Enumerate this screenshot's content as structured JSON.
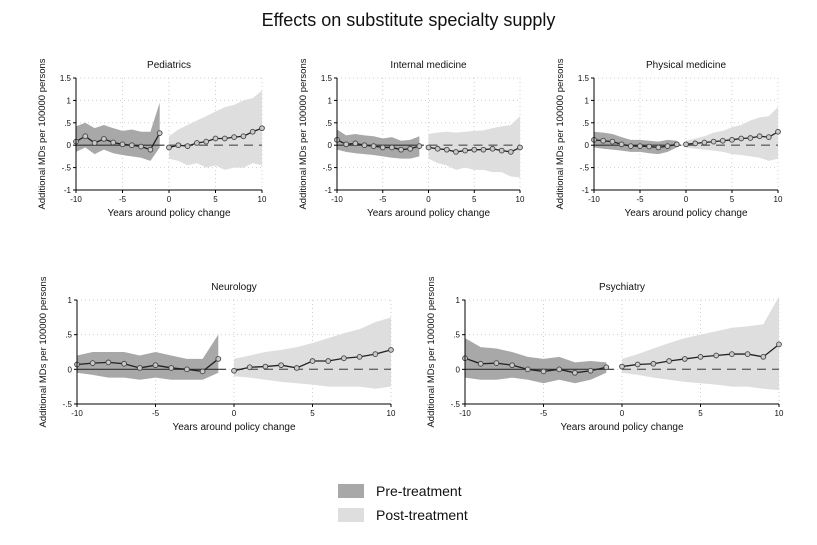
{
  "title": "Effects on substitute specialty supply",
  "colors": {
    "pre": "#a8a8a8",
    "post": "#dedede",
    "line": "#222222",
    "marker_fill": "#c9c9c9"
  },
  "legend": {
    "pre_label": "Pre-treatment",
    "post_label": "Post-treatment"
  },
  "chart_data": [
    {
      "type": "line",
      "title": "Pediatrics",
      "xlabel": "Years around policy change",
      "ylabel": "Additional MDs per 100000 persons",
      "xlim": [
        -10,
        10
      ],
      "ylim": [
        -1,
        1.5
      ],
      "yticks": [
        -1,
        -0.5,
        0,
        0.5,
        1,
        1.5
      ],
      "ytick_labels": [
        "-1",
        "-.5",
        "0",
        ".5",
        "1",
        "1.5"
      ],
      "xticks": [
        -10,
        -5,
        0,
        5,
        10
      ],
      "pre": {
        "x": [
          -10,
          -9,
          -8,
          -7,
          -6,
          -5,
          -4,
          -3,
          -2,
          -1
        ],
        "y": [
          0.08,
          0.2,
          0.05,
          0.14,
          0.06,
          0.02,
          0.0,
          -0.03,
          -0.1,
          0.27
        ],
        "ci_lo": [
          -0.15,
          -0.05,
          -0.2,
          -0.1,
          -0.18,
          -0.22,
          -0.25,
          -0.28,
          -0.35,
          -0.05
        ],
        "ci_hi": [
          0.42,
          0.5,
          0.38,
          0.45,
          0.38,
          0.32,
          0.35,
          0.3,
          0.3,
          0.95
        ]
      },
      "post": {
        "x": [
          0,
          1,
          2,
          3,
          4,
          5,
          6,
          7,
          8,
          9,
          10
        ],
        "y": [
          -0.05,
          0.0,
          -0.02,
          0.05,
          0.08,
          0.15,
          0.15,
          0.18,
          0.2,
          0.3,
          0.38
        ],
        "ci_lo": [
          -0.3,
          -0.35,
          -0.45,
          -0.4,
          -0.5,
          -0.45,
          -0.55,
          -0.5,
          -0.5,
          -0.4,
          -0.45
        ],
        "ci_hi": [
          0.2,
          0.35,
          0.45,
          0.55,
          0.65,
          0.75,
          0.85,
          0.9,
          1.0,
          1.05,
          1.22
        ]
      }
    },
    {
      "type": "line",
      "title": "Internal medicine",
      "xlabel": "Years around policy change",
      "ylabel": "Additional MDs per 100000 persons",
      "xlim": [
        -10,
        10
      ],
      "ylim": [
        -1,
        1.5
      ],
      "yticks": [
        -1,
        -0.5,
        0,
        0.5,
        1,
        1.5
      ],
      "ytick_labels": [
        "-1",
        "-.5",
        "0",
        ".5",
        "1",
        "1.5"
      ],
      "xticks": [
        -10,
        -5,
        0,
        5,
        10
      ],
      "pre": {
        "x": [
          -10,
          -9,
          -8,
          -7,
          -6,
          -5,
          -4,
          -3,
          -2,
          -1
        ],
        "y": [
          0.12,
          0.02,
          0.04,
          0.0,
          -0.02,
          -0.05,
          -0.05,
          -0.1,
          -0.08,
          -0.02
        ],
        "ci_lo": [
          -0.1,
          -0.15,
          -0.18,
          -0.2,
          -0.22,
          -0.25,
          -0.28,
          -0.3,
          -0.3,
          -0.25
        ],
        "ci_hi": [
          0.35,
          0.22,
          0.25,
          0.22,
          0.2,
          0.15,
          0.18,
          0.1,
          0.12,
          0.2
        ]
      },
      "post": {
        "x": [
          0,
          1,
          2,
          3,
          4,
          5,
          6,
          7,
          8,
          9,
          10
        ],
        "y": [
          -0.05,
          -0.08,
          -0.1,
          -0.15,
          -0.12,
          -0.1,
          -0.1,
          -0.08,
          -0.12,
          -0.15,
          -0.05
        ],
        "ci_lo": [
          -0.3,
          -0.4,
          -0.45,
          -0.55,
          -0.5,
          -0.55,
          -0.55,
          -0.6,
          -0.6,
          -0.7,
          -0.72
        ],
        "ci_hi": [
          0.25,
          0.28,
          0.3,
          0.28,
          0.3,
          0.32,
          0.33,
          0.38,
          0.42,
          0.45,
          0.65
        ]
      }
    },
    {
      "type": "line",
      "title": "Physical medicine",
      "xlabel": "Years around policy change",
      "ylabel": "Additional MDs per 100000 persons",
      "xlim": [
        -10,
        10
      ],
      "ylim": [
        -1,
        1.5
      ],
      "yticks": [
        -1,
        -0.5,
        0,
        0.5,
        1,
        1.5
      ],
      "ytick_labels": [
        "-1",
        "-.5",
        "0",
        ".5",
        "1",
        "1.5"
      ],
      "xticks": [
        -10,
        -5,
        0,
        5,
        10
      ],
      "pre": {
        "x": [
          -10,
          -9,
          -8,
          -7,
          -6,
          -5,
          -4,
          -3,
          -2,
          -1
        ],
        "y": [
          0.12,
          0.1,
          0.08,
          0.02,
          -0.02,
          -0.02,
          -0.03,
          -0.05,
          -0.02,
          0.02
        ],
        "ci_lo": [
          -0.05,
          -0.08,
          -0.1,
          -0.12,
          -0.15,
          -0.15,
          -0.18,
          -0.2,
          -0.15,
          -0.05
        ],
        "ci_hi": [
          0.3,
          0.28,
          0.25,
          0.18,
          0.12,
          0.12,
          0.1,
          0.08,
          0.12,
          0.1
        ]
      },
      "post": {
        "x": [
          0,
          1,
          2,
          3,
          4,
          5,
          6,
          7,
          8,
          9,
          10
        ],
        "y": [
          0.02,
          0.04,
          0.06,
          0.08,
          0.1,
          0.12,
          0.15,
          0.16,
          0.2,
          0.18,
          0.3
        ],
        "ci_lo": [
          -0.05,
          -0.08,
          -0.1,
          -0.12,
          -0.15,
          -0.2,
          -0.22,
          -0.25,
          -0.28,
          -0.35,
          -0.3
        ],
        "ci_hi": [
          0.1,
          0.15,
          0.2,
          0.28,
          0.32,
          0.4,
          0.45,
          0.55,
          0.62,
          0.65,
          0.85
        ]
      }
    },
    {
      "type": "line",
      "title": "Neurology",
      "xlabel": "Years around policy change",
      "ylabel": "Additional MDs per 100000 persons",
      "xlim": [
        -10,
        10
      ],
      "ylim": [
        -0.5,
        1
      ],
      "yticks": [
        -0.5,
        0,
        0.5,
        1
      ],
      "ytick_labels": [
        "-.5",
        "0",
        ".5",
        "1"
      ],
      "xticks": [
        -10,
        -5,
        0,
        5,
        10
      ],
      "pre": {
        "x": [
          -10,
          -9,
          -8,
          -7,
          -6,
          -5,
          -4,
          -3,
          -2,
          -1
        ],
        "y": [
          0.07,
          0.09,
          0.1,
          0.08,
          0.02,
          0.06,
          0.02,
          0.0,
          -0.03,
          0.15
        ],
        "ci_lo": [
          -0.05,
          -0.08,
          -0.12,
          -0.12,
          -0.15,
          -0.12,
          -0.15,
          -0.15,
          -0.15,
          -0.05
        ],
        "ci_hi": [
          0.2,
          0.25,
          0.25,
          0.25,
          0.2,
          0.25,
          0.2,
          0.15,
          0.15,
          0.5
        ]
      },
      "post": {
        "x": [
          0,
          1,
          2,
          3,
          4,
          5,
          6,
          7,
          8,
          9,
          10
        ],
        "y": [
          -0.02,
          0.03,
          0.04,
          0.06,
          0.02,
          0.12,
          0.12,
          0.16,
          0.18,
          0.22,
          0.28
        ],
        "ci_lo": [
          -0.1,
          -0.12,
          -0.15,
          -0.18,
          -0.2,
          -0.22,
          -0.25,
          -0.25,
          -0.25,
          -0.28,
          -0.25
        ],
        "ci_hi": [
          0.15,
          0.2,
          0.25,
          0.28,
          0.32,
          0.38,
          0.45,
          0.52,
          0.58,
          0.68,
          0.75
        ]
      }
    },
    {
      "type": "line",
      "title": "Psychiatry",
      "xlabel": "Years around policy change",
      "ylabel": "Additional MDs per 100000 persons",
      "xlim": [
        -10,
        10
      ],
      "ylim": [
        -0.5,
        1
      ],
      "yticks": [
        -0.5,
        0,
        0.5,
        1
      ],
      "ytick_labels": [
        "-.5",
        "0",
        ".5",
        "1"
      ],
      "xticks": [
        -10,
        -5,
        0,
        5,
        10
      ],
      "pre": {
        "x": [
          -10,
          -9,
          -8,
          -7,
          -6,
          -5,
          -4,
          -3,
          -2,
          -1
        ],
        "y": [
          0.16,
          0.08,
          0.09,
          0.06,
          0.0,
          -0.03,
          0.0,
          -0.05,
          -0.02,
          0.03
        ],
        "ci_lo": [
          -0.12,
          -0.15,
          -0.15,
          -0.12,
          -0.15,
          -0.2,
          -0.15,
          -0.2,
          -0.15,
          -0.05
        ],
        "ci_hi": [
          0.45,
          0.32,
          0.3,
          0.25,
          0.18,
          0.15,
          0.18,
          0.1,
          0.12,
          0.1
        ]
      },
      "post": {
        "x": [
          0,
          1,
          2,
          3,
          4,
          5,
          6,
          7,
          8,
          9,
          10
        ],
        "y": [
          0.04,
          0.07,
          0.08,
          0.12,
          0.15,
          0.18,
          0.2,
          0.22,
          0.22,
          0.18,
          0.36
        ],
        "ci_lo": [
          -0.05,
          -0.08,
          -0.12,
          -0.15,
          -0.18,
          -0.2,
          -0.22,
          -0.25,
          -0.25,
          -0.28,
          -0.3
        ],
        "ci_hi": [
          0.15,
          0.22,
          0.3,
          0.38,
          0.45,
          0.5,
          0.55,
          0.6,
          0.62,
          0.65,
          1.05
        ]
      }
    }
  ]
}
